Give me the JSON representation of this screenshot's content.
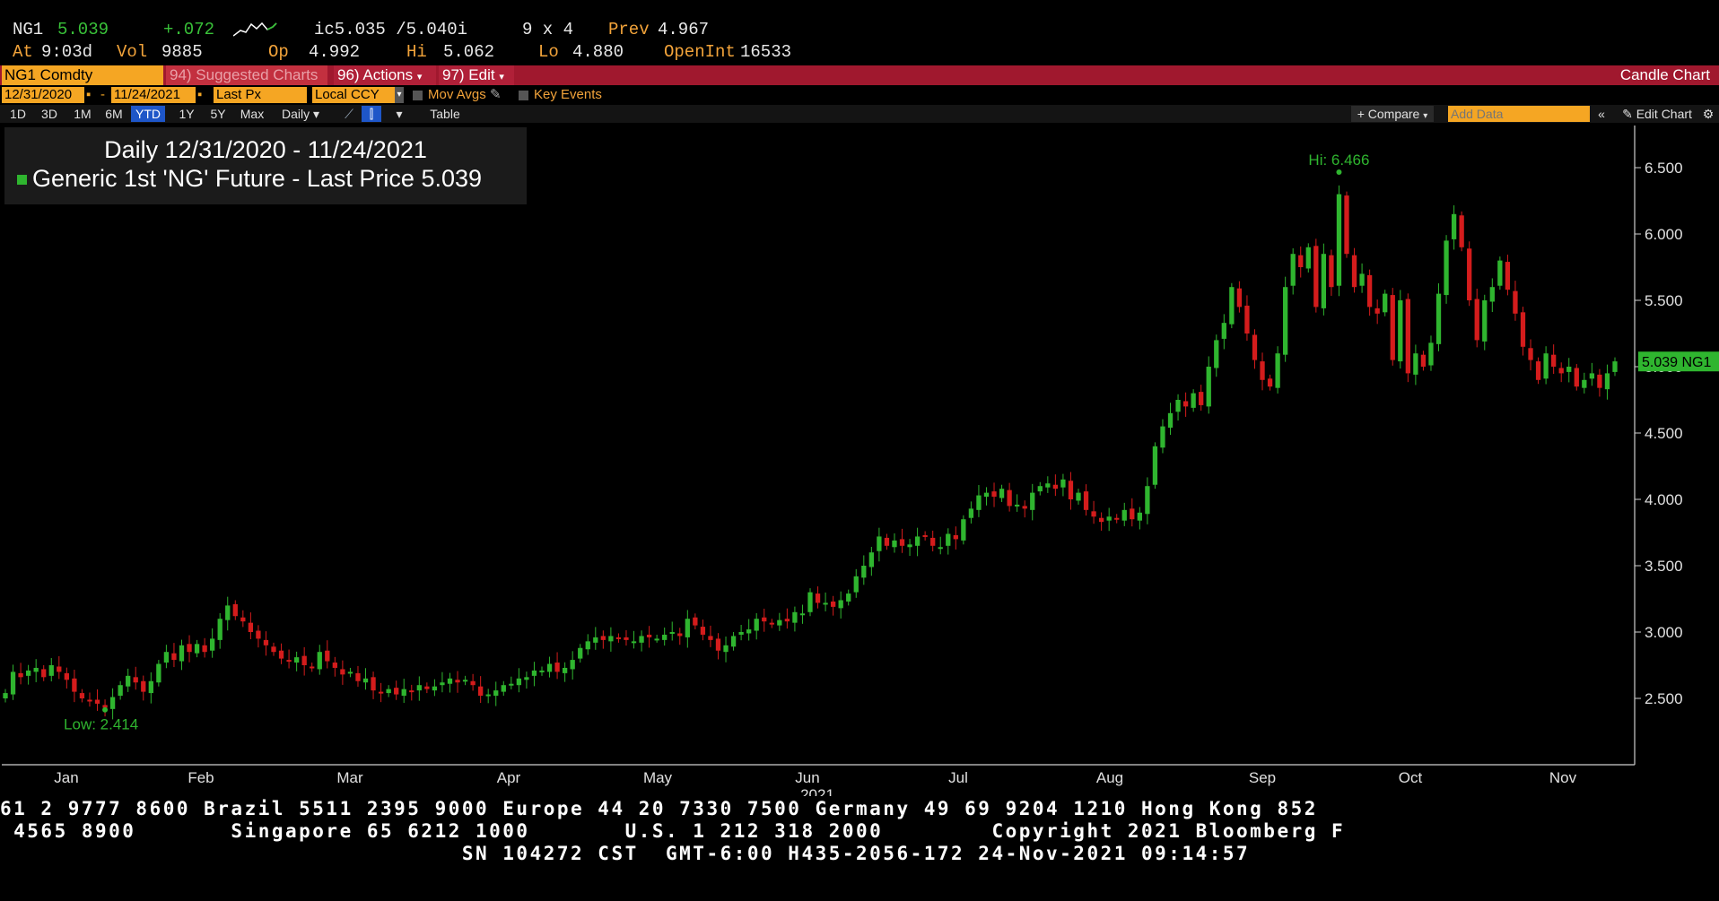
{
  "quote": {
    "ticker": "NG1",
    "last": "5.039",
    "change": "+.072",
    "bid_ask": "ic5.035 /5.040i",
    "size": "9 x 4",
    "prev_label": "Prev",
    "prev": "4.967",
    "at_label": "At",
    "time": "9:03d",
    "vol_label": "Vol",
    "vol": "9885",
    "op_label": "Op",
    "open": "4.992",
    "hi_label": "Hi",
    "high": "5.062",
    "lo_label": "Lo",
    "low": "4.880",
    "openint_label": "OpenInt",
    "openint": "16533"
  },
  "menu": {
    "security": "NG1 Comdty",
    "suggested": "94) Suggested Charts",
    "actions": "96) Actions",
    "edit": "97) Edit",
    "chart_type": "Candle Chart"
  },
  "params": {
    "start_date": "12/31/2020",
    "end_date": "11/24/2021",
    "field": "Last Px",
    "currency": "Local CCY",
    "mov_avgs": "Mov Avgs",
    "key_events": "Key Events"
  },
  "range": {
    "buttons": [
      "1D",
      "3D",
      "1M",
      "6M",
      "YTD",
      "1Y",
      "5Y",
      "Max"
    ],
    "active": "YTD",
    "period": "Daily",
    "table": "Table",
    "compare": "+ Compare",
    "add_data_placeholder": "Add Data",
    "edit_chart": "Edit Chart"
  },
  "colors": {
    "up": "#2fb52f",
    "down": "#d41c1c",
    "accent": "#f5a623",
    "menu_bar": "#a0182e"
  },
  "footer": {
    "line1": "61 2 9777 8600 Brazil 5511 2395 9000 Europe 44 20 7330 7500 Germany 49 69 9204 1210 Hong Kong 852",
    "line2": " 4565 8900       Singapore 65 6212 1000       U.S. 1 212 318 2000        Copyright 2021 Bloomberg F",
    "line3": "                                  SN 104272 CST  GMT-6:00 H435-2056-172 24-Nov-2021 09:14:57"
  },
  "chart_data": {
    "type": "candlestick",
    "title": "Daily 12/31/2020 - 11/24/2021",
    "legend": "Generic 1st 'NG' Future - Last Price",
    "legend_value": "5.039",
    "last_label": "5.039 NG1",
    "hi_annotation": "Hi: 6.466",
    "low_annotation": "Low: 2.414",
    "ylim": [
      2.0,
      6.8
    ],
    "yticks": [
      "2.500",
      "3.000",
      "3.500",
      "4.000",
      "4.500",
      "5.000",
      "5.500",
      "6.000",
      "6.500"
    ],
    "x_month_labels": [
      "Jan",
      "Feb",
      "Mar",
      "Apr",
      "May",
      "Jun",
      "Jul",
      "Aug",
      "Sep",
      "Oct",
      "Nov"
    ],
    "x_year_label": "2021",
    "grid": false,
    "closes": [
      2.54,
      2.7,
      2.66,
      2.71,
      2.73,
      2.66,
      2.75,
      2.7,
      2.64,
      2.55,
      2.5,
      2.48,
      2.46,
      2.43,
      2.51,
      2.6,
      2.67,
      2.62,
      2.55,
      2.63,
      2.76,
      2.85,
      2.79,
      2.9,
      2.85,
      2.91,
      2.85,
      2.95,
      3.1,
      3.2,
      3.12,
      3.08,
      3.0,
      2.95,
      2.9,
      2.85,
      2.8,
      2.78,
      2.81,
      2.75,
      2.73,
      2.85,
      2.78,
      2.73,
      2.68,
      2.7,
      2.63,
      2.65,
      2.56,
      2.55,
      2.57,
      2.53,
      2.57,
      2.55,
      2.6,
      2.57,
      2.59,
      2.62,
      2.65,
      2.62,
      2.64,
      2.6,
      2.52,
      2.53,
      2.56,
      2.6,
      2.61,
      2.65,
      2.66,
      2.71,
      2.71,
      2.76,
      2.7,
      2.73,
      2.79,
      2.88,
      2.93,
      2.96,
      2.94,
      2.97,
      2.95,
      2.94,
      2.93,
      2.97,
      2.96,
      2.95,
      2.98,
      3.0,
      2.97,
      3.1,
      3.05,
      2.98,
      2.94,
      2.86,
      2.9,
      2.97,
      3.0,
      3.02,
      3.1,
      3.08,
      3.06,
      3.09,
      3.08,
      3.15,
      3.14,
      3.3,
      3.22,
      3.22,
      3.19,
      3.24,
      3.29,
      3.42,
      3.5,
      3.6,
      3.72,
      3.65,
      3.69,
      3.65,
      3.66,
      3.72,
      3.72,
      3.65,
      3.64,
      3.74,
      3.7,
      3.85,
      3.93,
      4.03,
      4.05,
      4.02,
      4.08,
      3.95,
      3.96,
      3.93,
      4.05,
      4.1,
      4.12,
      4.08,
      4.15,
      4.0,
      4.05,
      3.92,
      3.87,
      3.83,
      3.87,
      3.85,
      3.92,
      3.85,
      3.9,
      4.1,
      4.4,
      4.55,
      4.65,
      4.75,
      4.7,
      4.8,
      4.71,
      5.0,
      5.2,
      5.33,
      5.6,
      5.45,
      5.25,
      5.05,
      4.9,
      4.85,
      5.1,
      5.6,
      5.85,
      5.75,
      5.9,
      5.45,
      5.85,
      5.6,
      6.3,
      5.85,
      5.6,
      5.7,
      5.45,
      5.4,
      5.55,
      5.05,
      5.5,
      4.95,
      5.1,
      5.0,
      5.18,
      5.55,
      5.95,
      6.15,
      5.9,
      5.5,
      5.2,
      5.5,
      5.6,
      5.8,
      5.58,
      5.4,
      5.15,
      5.05,
      4.9,
      5.1,
      5.0,
      4.95,
      5.0,
      4.85,
      4.9,
      4.95,
      4.84,
      4.95,
      5.04
    ]
  }
}
